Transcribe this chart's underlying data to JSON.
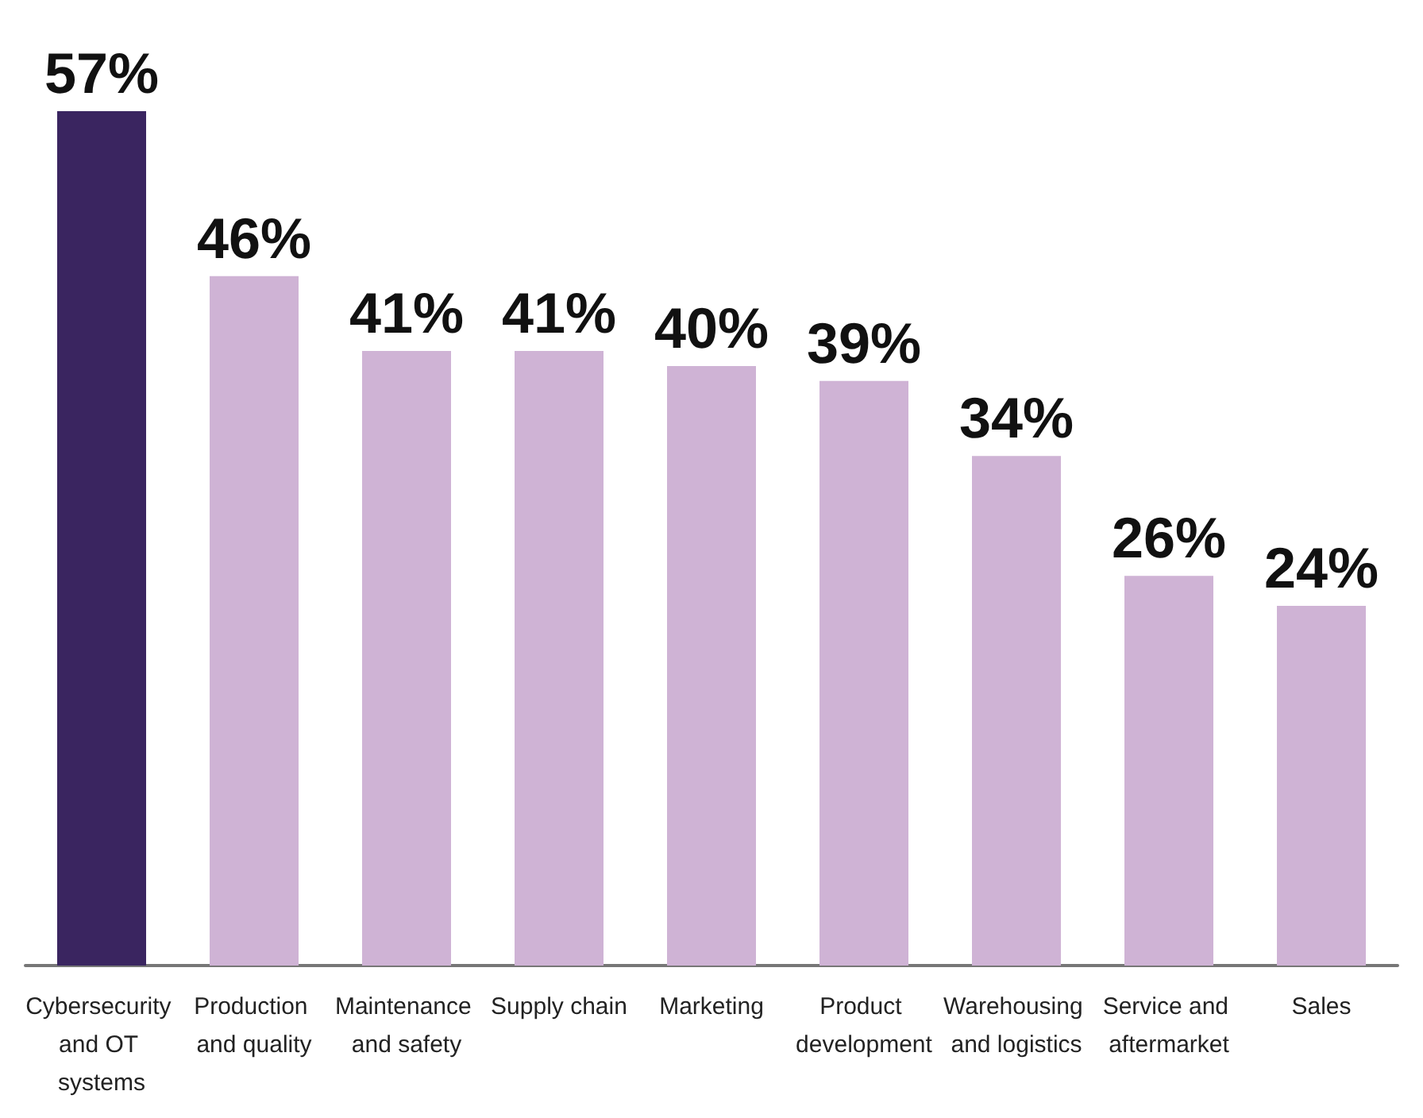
{
  "chart_data": {
    "type": "bar",
    "categories": [
      "Cybersecurity and OT systems",
      "Production and quality",
      "Maintenance and safety",
      "Supply chain",
      "Marketing",
      "Product development",
      "Warehousing and logistics",
      "Service and aftermarket",
      "Sales"
    ],
    "values": [
      57,
      46,
      41,
      41,
      40,
      39,
      34,
      26,
      24
    ],
    "colors": [
      "#3a2560",
      "#cfb3d5",
      "#cfb3d5",
      "#cfb3d5",
      "#cfb3d5",
      "#cfb3d5",
      "#cfb3d5",
      "#cfb3d5",
      "#cfb3d5"
    ],
    "value_labels": [
      "57%",
      "46%",
      "41%",
      "41%",
      "40%",
      "39%",
      "34%",
      "26%",
      "24%"
    ],
    "grid": false
  }
}
